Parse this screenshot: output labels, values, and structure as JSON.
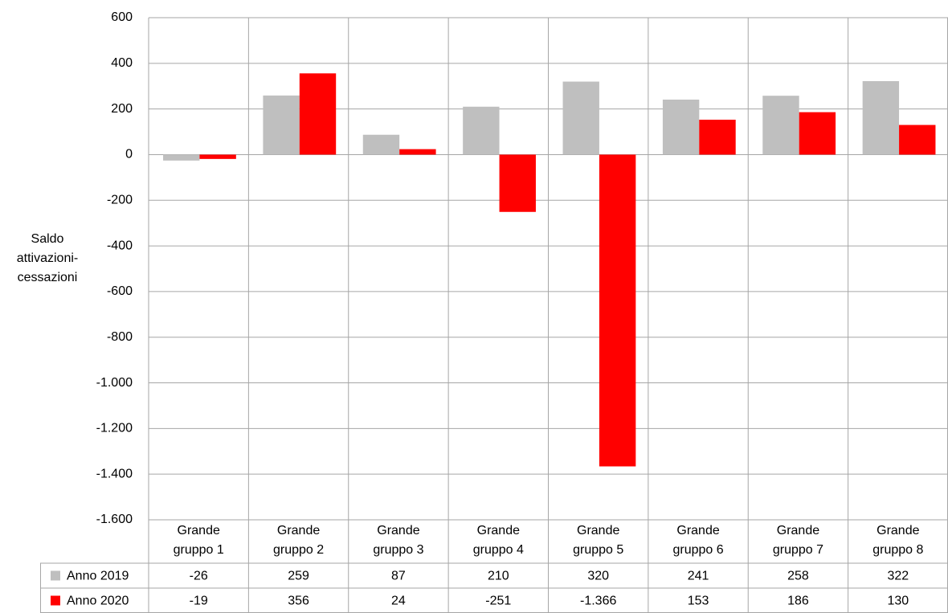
{
  "chart_data": {
    "type": "bar",
    "y_label": "Saldo attivazioni-cessazioni",
    "categories": [
      "Grande gruppo 1",
      "Grande gruppo 2",
      "Grande gruppo 3",
      "Grande gruppo 4",
      "Grande gruppo 5",
      "Grande gruppo 6",
      "Grande gruppo 7",
      "Grande gruppo 8"
    ],
    "series": [
      {
        "name": "Anno 2019",
        "color": "#bfbfbf",
        "values": [
          -26,
          259,
          87,
          210,
          320,
          241,
          258,
          322
        ]
      },
      {
        "name": "Anno 2020",
        "color": "#ff0000",
        "values": [
          -19,
          356,
          24,
          -251,
          -1366,
          153,
          186,
          130
        ],
        "value_labels": [
          "-19",
          "356",
          "24",
          "-251",
          "-1.366",
          "153",
          "186",
          "130"
        ]
      }
    ],
    "ylim": [
      -1600,
      600
    ],
    "yticks": [
      600,
      400,
      200,
      0,
      -200,
      -400,
      -600,
      -800,
      {
        "value": -1000,
        "label": "-1.000"
      },
      {
        "value": -1200,
        "label": "-1.200"
      },
      {
        "value": -1400,
        "label": "-1.400"
      },
      {
        "value": -1600,
        "label": "-1.600"
      }
    ],
    "grid": true
  }
}
